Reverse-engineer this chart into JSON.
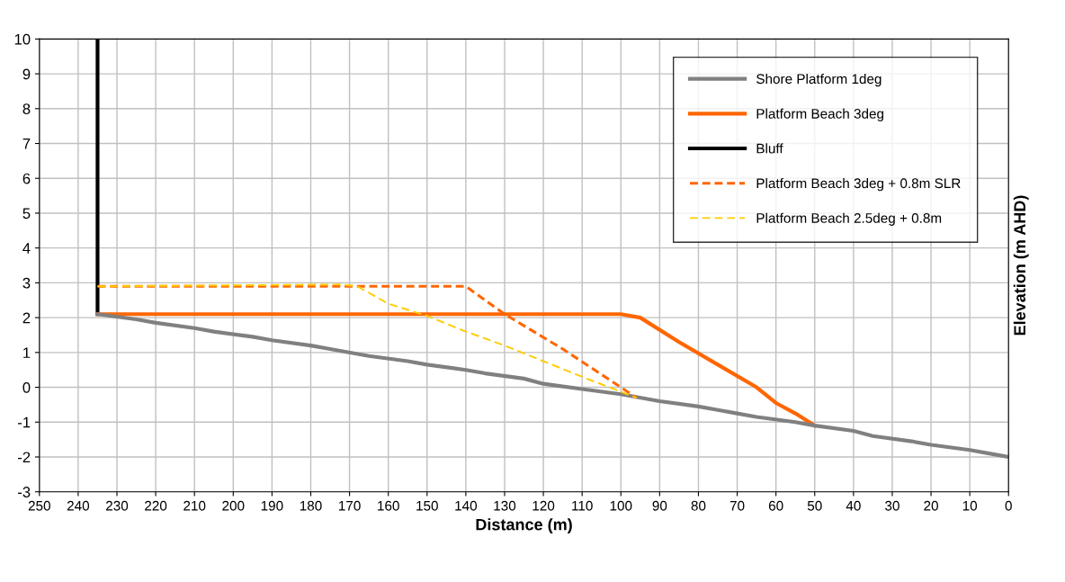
{
  "chart_data": {
    "type": "line",
    "xlabel": "Distance (m)",
    "ylabel": "Elevation (m AHD)",
    "xlim": [
      250,
      0
    ],
    "xticks": [
      250,
      240,
      230,
      220,
      210,
      200,
      190,
      180,
      170,
      160,
      150,
      140,
      130,
      120,
      110,
      100,
      90,
      80,
      70,
      60,
      50,
      40,
      30,
      20,
      10,
      0
    ],
    "ylim": [
      -3,
      10
    ],
    "yticks": [
      -3,
      -2,
      -1,
      0,
      1,
      2,
      3,
      4,
      5,
      6,
      7,
      8,
      9,
      10
    ],
    "grid": true,
    "legend": "top right",
    "marker": "none",
    "series": [
      {
        "name": "Shore Platform 1deg",
        "color": "#808080",
        "line_style": "solid",
        "x": [
          235,
          225,
          220,
          210,
          205,
          195,
          190,
          180,
          175,
          165,
          155,
          150,
          140,
          135,
          125,
          120,
          110,
          100,
          90,
          80,
          75,
          70,
          65,
          55,
          50,
          40,
          35,
          25,
          20,
          10,
          5,
          0
        ],
        "values": [
          2.1,
          1.95,
          1.85,
          1.7,
          1.6,
          1.45,
          1.35,
          1.2,
          1.1,
          0.9,
          0.75,
          0.65,
          0.5,
          0.4,
          0.25,
          0.1,
          -0.05,
          -0.2,
          -0.4,
          -0.55,
          -0.65,
          -0.75,
          -0.85,
          -1.0,
          -1.1,
          -1.25,
          -1.4,
          -1.55,
          -1.65,
          -1.8,
          -1.9,
          -2.0
        ]
      },
      {
        "name": "Platform Beach 3deg",
        "color": "#ff6600",
        "line_style": "solid",
        "x": [
          235,
          100,
          95,
          85,
          75,
          65,
          60,
          55,
          50
        ],
        "values": [
          2.1,
          2.1,
          2.0,
          1.3,
          0.65,
          0.0,
          -0.45,
          -0.75,
          -1.1
        ]
      },
      {
        "name": "Bluff",
        "color": "#000000",
        "line_style": "solid",
        "x": [
          235,
          235
        ],
        "values": [
          10,
          2.1
        ]
      },
      {
        "name": "Platform Beach 3deg + 0.8m SLR",
        "color": "#ff6600",
        "line_style": "dashed",
        "x": [
          235,
          140,
          130,
          115,
          100,
          96
        ],
        "values": [
          2.9,
          2.9,
          2.1,
          1.1,
          0.0,
          -0.3
        ]
      },
      {
        "name": "Platform Beach 2.5deg + 0.8m",
        "color": "#ffcc00",
        "line_style": "dashed",
        "x": [
          235,
          172,
          168,
          160,
          150,
          140,
          130,
          120,
          110,
          96
        ],
        "values": [
          2.9,
          2.95,
          2.9,
          2.4,
          2.05,
          1.6,
          1.2,
          0.75,
          0.3,
          -0.3
        ]
      }
    ]
  }
}
